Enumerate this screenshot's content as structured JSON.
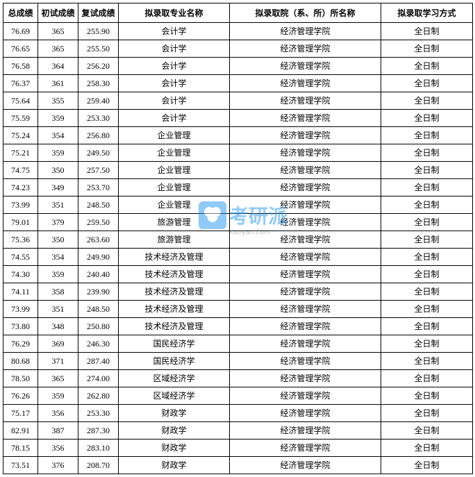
{
  "table": {
    "columns": [
      "总成绩",
      "初试成绩",
      "复试成绩",
      "拟录取专业名称",
      "拟录取院（系、所）所名称",
      "拟录取学习方式"
    ],
    "column_widths": [
      "50px",
      "58px",
      "58px",
      "160px",
      "218px",
      "132px"
    ],
    "rows": [
      [
        "76.69",
        "365",
        "255.90",
        "会计学",
        "经济管理学院",
        "全日制"
      ],
      [
        "76.65",
        "365",
        "255.50",
        "会计学",
        "经济管理学院",
        "全日制"
      ],
      [
        "76.58",
        "364",
        "256.20",
        "会计学",
        "经济管理学院",
        "全日制"
      ],
      [
        "76.37",
        "361",
        "258.30",
        "会计学",
        "经济管理学院",
        "全日制"
      ],
      [
        "75.64",
        "355",
        "259.40",
        "会计学",
        "经济管理学院",
        "全日制"
      ],
      [
        "75.59",
        "359",
        "253.30",
        "会计学",
        "经济管理学院",
        "全日制"
      ],
      [
        "75.24",
        "354",
        "256.80",
        "企业管理",
        "经济管理学院",
        "全日制"
      ],
      [
        "75.21",
        "359",
        "249.50",
        "企业管理",
        "经济管理学院",
        "全日制"
      ],
      [
        "74.75",
        "350",
        "257.50",
        "企业管理",
        "经济管理学院",
        "全日制"
      ],
      [
        "74.23",
        "349",
        "253.70",
        "企业管理",
        "经济管理学院",
        "全日制"
      ],
      [
        "73.99",
        "351",
        "248.50",
        "企业管理",
        "经济管理学院",
        "全日制"
      ],
      [
        "79.01",
        "379",
        "259.50",
        "旅游管理",
        "经济管理学院",
        "全日制"
      ],
      [
        "75.36",
        "350",
        "263.60",
        "旅游管理",
        "经济管理学院",
        "全日制"
      ],
      [
        "74.55",
        "354",
        "249.90",
        "技术经济及管理",
        "经济管理学院",
        "全日制"
      ],
      [
        "74.30",
        "359",
        "240.40",
        "技术经济及管理",
        "经济管理学院",
        "全日制"
      ],
      [
        "74.11",
        "358",
        "239.90",
        "技术经济及管理",
        "经济管理学院",
        "全日制"
      ],
      [
        "73.99",
        "351",
        "248.50",
        "技术经济及管理",
        "经济管理学院",
        "全日制"
      ],
      [
        "73.80",
        "348",
        "250.80",
        "技术经济及管理",
        "经济管理学院",
        "全日制"
      ],
      [
        "76.29",
        "369",
        "246.30",
        "国民经济学",
        "经济管理学院",
        "全日制"
      ],
      [
        "80.68",
        "371",
        "287.40",
        "国民经济学",
        "经济管理学院",
        "全日制"
      ],
      [
        "78.50",
        "365",
        "274.00",
        "区域经济学",
        "经济管理学院",
        "全日制"
      ],
      [
        "76.26",
        "359",
        "262.80",
        "区域经济学",
        "经济管理学院",
        "全日制"
      ],
      [
        "75.17",
        "356",
        "253.30",
        "财政学",
        "经济管理学院",
        "全日制"
      ],
      [
        "82.91",
        "387",
        "287.30",
        "财政学",
        "经济管理学院",
        "全日制"
      ],
      [
        "78.15",
        "356",
        "283.10",
        "财政学",
        "经济管理学院",
        "全日制"
      ],
      [
        "73.51",
        "376",
        "208.70",
        "财政学",
        "经济管理学院",
        "全日制"
      ]
    ],
    "border_color": "#000000",
    "background_color": "#ffffff",
    "header_font_weight": "bold",
    "font_size": 12,
    "text_color": "#000000"
  },
  "watermark": {
    "brand_text": "考研派",
    "url_text": "kaoyan.com",
    "brand_color": "#2196f3",
    "url_color": "#888888",
    "opacity": 0.5
  }
}
